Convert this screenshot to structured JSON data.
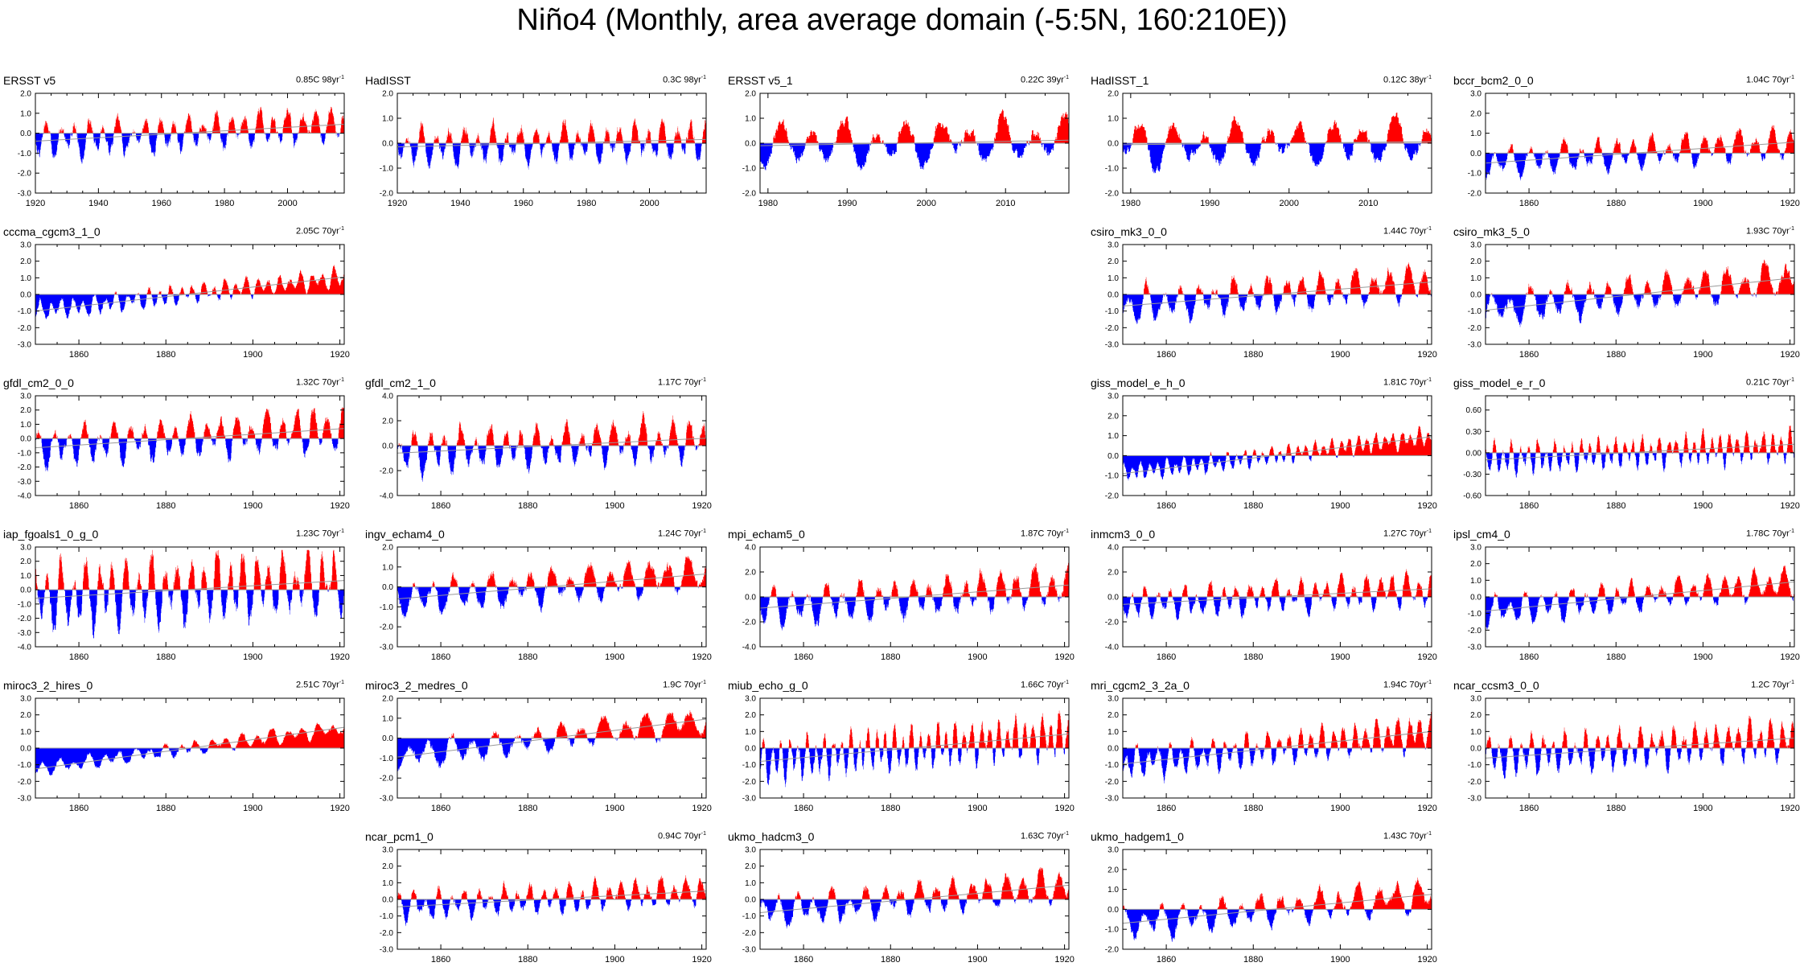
{
  "page_title": "Niño4 (Monthly, area average domain (-5:5N, 160:210E))",
  "colors": {
    "positive": "#ff0000",
    "negative": "#0000ff",
    "frame": "#000000",
    "zero_line": "#999999"
  },
  "chart_data": [
    {
      "name": "ERSST v5",
      "trend": "0.85C 98yr",
      "trend_sup": "-1",
      "type": "area",
      "x_start": 1920,
      "x_end": 2017,
      "ylim": [
        -3.0,
        2.0
      ],
      "yticks": [
        "2.0",
        "1.0",
        "0.0",
        "-1.0",
        "-2.0",
        "-3.0"
      ],
      "xticks": [
        1920,
        1940,
        1960,
        1980,
        2000
      ],
      "trend_line": [
        -0.4,
        0.45
      ],
      "amp": 0.9,
      "period": 4.5,
      "seed": 1,
      "row": 0,
      "col": 0
    },
    {
      "name": "HadISST",
      "trend": "0.3C 98yr",
      "trend_sup": "-1",
      "type": "area",
      "x_start": 1920,
      "x_end": 2017,
      "ylim": [
        -2.0,
        2.0
      ],
      "yticks": [
        "2.0",
        "1.0",
        "0.0",
        "-1.0",
        "-2.0"
      ],
      "xticks": [
        1920,
        1940,
        1960,
        1980,
        2000
      ],
      "trend_line": [
        -0.15,
        0.15
      ],
      "amp": 0.8,
      "period": 4.5,
      "seed": 2,
      "row": 0,
      "col": 1
    },
    {
      "name": "ERSST v5_1",
      "trend": "0.22C 39yr",
      "trend_sup": "-1",
      "type": "area",
      "x_start": 1979,
      "x_end": 2017,
      "ylim": [
        -2.0,
        2.0
      ],
      "yticks": [
        "2.0",
        "1.0",
        "0.0",
        "-1.0",
        "-2.0"
      ],
      "xticks": [
        1980,
        1990,
        2000,
        2010
      ],
      "trend_line": [
        -0.1,
        0.12
      ],
      "amp": 0.9,
      "period": 4.0,
      "seed": 3,
      "row": 0,
      "col": 2
    },
    {
      "name": "HadISST_1",
      "trend": "0.12C 38yr",
      "trend_sup": "-1",
      "type": "area",
      "x_start": 1979,
      "x_end": 2017,
      "ylim": [
        -2.0,
        2.0
      ],
      "yticks": [
        "2.0",
        "1.0",
        "0.0",
        "-1.0",
        "-2.0"
      ],
      "xticks": [
        1980,
        1990,
        2000,
        2010
      ],
      "trend_line": [
        -0.06,
        0.06
      ],
      "amp": 0.9,
      "period": 4.0,
      "seed": 4,
      "row": 0,
      "col": 3
    },
    {
      "name": "bccr_bcm2_0_0",
      "trend": "1.04C 70yr",
      "trend_sup": "-1",
      "type": "area",
      "x_start": 1850,
      "x_end": 1920,
      "ylim": [
        -2.0,
        3.0
      ],
      "yticks": [
        "3.0",
        "2.0",
        "1.0",
        "0.0",
        "-1.0",
        "-2.0"
      ],
      "xticks": [
        1860,
        1880,
        1900,
        1920
      ],
      "trend_line": [
        -0.5,
        0.55
      ],
      "amp": 0.8,
      "period": 4.0,
      "seed": 5,
      "row": 0,
      "col": 4
    },
    {
      "name": "cccma_cgcm3_1_0",
      "trend": "2.05C 70yr",
      "trend_sup": "-1",
      "type": "area",
      "x_start": 1850,
      "x_end": 1920,
      "ylim": [
        -3.0,
        3.0
      ],
      "yticks": [
        "3.0",
        "2.0",
        "1.0",
        "0.0",
        "-1.0",
        "-2.0",
        "-3.0"
      ],
      "xticks": [
        1860,
        1880,
        1900,
        1920
      ],
      "trend_line": [
        -1.0,
        1.05
      ],
      "amp": 0.6,
      "period": 2.5,
      "seed": 6,
      "row": 1,
      "col": 0
    },
    {
      "name": "csiro_mk3_0_0",
      "trend": "1.44C 70yr",
      "trend_sup": "-1",
      "type": "area",
      "x_start": 1850,
      "x_end": 1920,
      "ylim": [
        -3.0,
        3.0
      ],
      "yticks": [
        "3.0",
        "2.0",
        "1.0",
        "0.0",
        "-1.0",
        "-2.0",
        "-3.0"
      ],
      "xticks": [
        1860,
        1880,
        1900,
        1920
      ],
      "trend_line": [
        -0.7,
        0.75
      ],
      "amp": 1.1,
      "period": 4.0,
      "seed": 7,
      "row": 1,
      "col": 3
    },
    {
      "name": "csiro_mk3_5_0",
      "trend": "1.93C 70yr",
      "trend_sup": "-1",
      "type": "area",
      "x_start": 1850,
      "x_end": 1920,
      "ylim": [
        -3.0,
        3.0
      ],
      "yticks": [
        "3.0",
        "2.0",
        "1.0",
        "0.0",
        "-1.0",
        "-2.0",
        "-3.0"
      ],
      "xticks": [
        1860,
        1880,
        1900,
        1920
      ],
      "trend_line": [
        -0.95,
        1.0
      ],
      "amp": 1.1,
      "period": 4.5,
      "seed": 8,
      "row": 1,
      "col": 4
    },
    {
      "name": "gfdl_cm2_0_0",
      "trend": "1.32C 70yr",
      "trend_sup": "-1",
      "type": "area",
      "x_start": 1850,
      "x_end": 1920,
      "ylim": [
        -4.0,
        3.0
      ],
      "yticks": [
        "3.0",
        "2.0",
        "1.0",
        "0.0",
        "-1.0",
        "-2.0",
        "-3.0",
        "-4.0"
      ],
      "xticks": [
        1860,
        1880,
        1900,
        1920
      ],
      "trend_line": [
        -0.65,
        0.7
      ],
      "amp": 1.4,
      "period": 3.5,
      "seed": 9,
      "row": 2,
      "col": 0
    },
    {
      "name": "gfdl_cm2_1_0",
      "trend": "1.17C 70yr",
      "trend_sup": "-1",
      "type": "area",
      "x_start": 1850,
      "x_end": 1920,
      "ylim": [
        -4.0,
        4.0
      ],
      "yticks": [
        "4.0",
        "2.0",
        "0.0",
        "-2.0",
        "-4.0"
      ],
      "xticks": [
        1860,
        1880,
        1900,
        1920
      ],
      "trend_line": [
        -0.6,
        0.6
      ],
      "amp": 1.7,
      "period": 3.5,
      "seed": 10,
      "row": 2,
      "col": 1
    },
    {
      "name": "giss_model_e_h_0",
      "trend": "1.81C 70yr",
      "trend_sup": "-1",
      "type": "area",
      "x_start": 1850,
      "x_end": 1920,
      "ylim": [
        -2.0,
        3.0
      ],
      "yticks": [
        "3.0",
        "2.0",
        "1.0",
        "0.0",
        "-1.0",
        "-2.0"
      ],
      "xticks": [
        1860,
        1880,
        1900,
        1920
      ],
      "trend_line": [
        -0.9,
        0.95
      ],
      "amp": 0.45,
      "period": 2.0,
      "seed": 11,
      "row": 2,
      "col": 3
    },
    {
      "name": "giss_model_e_r_0",
      "trend": "0.21C 70yr",
      "trend_sup": "-1",
      "type": "area",
      "x_start": 1850,
      "x_end": 1920,
      "ylim": [
        -0.6,
        0.8
      ],
      "yticks": [
        "0.60",
        "0.30",
        "0.00",
        "-0.30",
        "-0.60"
      ],
      "ytick_vals": [
        0.6,
        0.3,
        0.0,
        -0.3,
        -0.6
      ],
      "xticks": [
        1860,
        1880,
        1900,
        1920
      ],
      "trend_line": [
        -0.1,
        0.12
      ],
      "amp": 0.22,
      "period": 2.0,
      "seed": 12,
      "row": 2,
      "col": 4
    },
    {
      "name": "iap_fgoals1_0_g_0",
      "trend": "1.23C 70yr",
      "trend_sup": "-1",
      "type": "area",
      "x_start": 1850,
      "x_end": 1920,
      "ylim": [
        -4.0,
        3.0
      ],
      "yticks": [
        "3.0",
        "2.0",
        "1.0",
        "0.0",
        "-1.0",
        "-2.0",
        "-3.0",
        "-4.0"
      ],
      "xticks": [
        1860,
        1880,
        1900,
        1920
      ],
      "trend_line": [
        -0.6,
        0.65
      ],
      "amp": 2.4,
      "period": 3.0,
      "seed": 13,
      "row": 3,
      "col": 0
    },
    {
      "name": "ingv_echam4_0",
      "trend": "1.24C 70yr",
      "trend_sup": "-1",
      "type": "area",
      "x_start": 1850,
      "x_end": 1920,
      "ylim": [
        -3.0,
        2.0
      ],
      "yticks": [
        "2.0",
        "1.0",
        "0.0",
        "-1.0",
        "-2.0",
        "-3.0"
      ],
      "xticks": [
        1860,
        1880,
        1900,
        1920
      ],
      "trend_line": [
        -0.6,
        0.65
      ],
      "amp": 0.9,
      "period": 4.5,
      "seed": 14,
      "row": 3,
      "col": 1
    },
    {
      "name": "mpi_echam5_0",
      "trend": "1.87C 70yr",
      "trend_sup": "-1",
      "type": "area",
      "x_start": 1850,
      "x_end": 1920,
      "ylim": [
        -4.0,
        4.0
      ],
      "yticks": [
        "4.0",
        "2.0",
        "0.0",
        "-2.0",
        "-4.0"
      ],
      "xticks": [
        1860,
        1880,
        1900,
        1920
      ],
      "trend_line": [
        -0.9,
        0.95
      ],
      "amp": 1.6,
      "period": 4.0,
      "seed": 15,
      "row": 3,
      "col": 2
    },
    {
      "name": "inmcm3_0_0",
      "trend": "1.27C 70yr",
      "trend_sup": "-1",
      "type": "area",
      "x_start": 1850,
      "x_end": 1920,
      "ylim": [
        -4.0,
        4.0
      ],
      "yticks": [
        "4.0",
        "2.0",
        "0.0",
        "-2.0",
        "-4.0"
      ],
      "xticks": [
        1860,
        1880,
        1900,
        1920
      ],
      "trend_line": [
        -0.6,
        0.65
      ],
      "amp": 1.3,
      "period": 3.0,
      "seed": 16,
      "row": 3,
      "col": 3
    },
    {
      "name": "ipsl_cm4_0",
      "trend": "1.78C 70yr",
      "trend_sup": "-1",
      "type": "area",
      "x_start": 1850,
      "x_end": 1920,
      "ylim": [
        -3.0,
        3.0
      ],
      "yticks": [
        "3.0",
        "2.0",
        "1.0",
        "0.0",
        "-1.0",
        "-2.0",
        "-3.0"
      ],
      "xticks": [
        1860,
        1880,
        1900,
        1920
      ],
      "trend_line": [
        -0.85,
        0.9
      ],
      "amp": 0.9,
      "period": 3.5,
      "seed": 17,
      "row": 3,
      "col": 4
    },
    {
      "name": "miroc3_2_hires_0",
      "trend": "2.51C 70yr",
      "trend_sup": "-1",
      "type": "area",
      "x_start": 1850,
      "x_end": 1920,
      "ylim": [
        -3.0,
        3.0
      ],
      "yticks": [
        "3.0",
        "2.0",
        "1.0",
        "0.0",
        "-1.0",
        "-2.0",
        "-3.0"
      ],
      "xticks": [
        1860,
        1880,
        1900,
        1920
      ],
      "trend_line": [
        -1.25,
        1.25
      ],
      "amp": 0.45,
      "period": 3.5,
      "seed": 18,
      "row": 4,
      "col": 0
    },
    {
      "name": "miroc3_2_medres_0",
      "trend": "1.9C 70yr",
      "trend_sup": "-1",
      "type": "area",
      "x_start": 1850,
      "x_end": 1920,
      "ylim": [
        -3.0,
        2.0
      ],
      "yticks": [
        "2.0",
        "1.0",
        "0.0",
        "-1.0",
        "-2.0",
        "-3.0"
      ],
      "xticks": [
        1860,
        1880,
        1900,
        1920
      ],
      "trend_line": [
        -0.95,
        0.95
      ],
      "amp": 0.7,
      "period": 5.0,
      "seed": 19,
      "row": 4,
      "col": 1
    },
    {
      "name": "miub_echo_g_0",
      "trend": "1.66C 70yr",
      "trend_sup": "-1",
      "type": "area",
      "x_start": 1850,
      "x_end": 1920,
      "ylim": [
        -3.0,
        3.0
      ],
      "yticks": [
        "3.0",
        "2.0",
        "1.0",
        "0.0",
        "-1.0",
        "-2.0",
        "-3.0"
      ],
      "xticks": [
        1860,
        1880,
        1900,
        1920
      ],
      "trend_line": [
        -0.8,
        0.85
      ],
      "amp": 1.3,
      "period": 2.0,
      "seed": 20,
      "row": 4,
      "col": 2
    },
    {
      "name": "mri_cgcm2_3_2a_0",
      "trend": "1.94C 70yr",
      "trend_sup": "-1",
      "type": "area",
      "x_start": 1850,
      "x_end": 1920,
      "ylim": [
        -3.0,
        3.0
      ],
      "yticks": [
        "3.0",
        "2.0",
        "1.0",
        "0.0",
        "-1.0",
        "-2.0",
        "-3.0"
      ],
      "xticks": [
        1860,
        1880,
        1900,
        1920
      ],
      "trend_line": [
        -0.95,
        1.0
      ],
      "amp": 1.0,
      "period": 2.5,
      "seed": 21,
      "row": 4,
      "col": 3
    },
    {
      "name": "ncar_ccsm3_0_0",
      "trend": "1.2C 70yr",
      "trend_sup": "-1",
      "type": "area",
      "x_start": 1850,
      "x_end": 1920,
      "ylim": [
        -3.0,
        3.0
      ],
      "yticks": [
        "3.0",
        "2.0",
        "1.0",
        "0.0",
        "-1.0",
        "-2.0",
        "-3.0"
      ],
      "xticks": [
        1860,
        1880,
        1900,
        1920
      ],
      "trend_line": [
        -0.6,
        0.6
      ],
      "amp": 1.2,
      "period": 2.5,
      "seed": 22,
      "row": 4,
      "col": 4
    },
    {
      "name": "ncar_pcm1_0",
      "trend": "0.94C 70yr",
      "trend_sup": "-1",
      "type": "area",
      "x_start": 1850,
      "x_end": 1920,
      "ylim": [
        -3.0,
        3.0
      ],
      "yticks": [
        "3.0",
        "2.0",
        "1.0",
        "0.0",
        "-1.0",
        "-2.0",
        "-3.0"
      ],
      "xticks": [
        1860,
        1880,
        1900,
        1920
      ],
      "trend_line": [
        -0.45,
        0.5
      ],
      "amp": 0.9,
      "period": 3.0,
      "seed": 23,
      "row": 5,
      "col": 1
    },
    {
      "name": "ukmo_hadcm3_0",
      "trend": "1.63C 70yr",
      "trend_sup": "-1",
      "type": "area",
      "x_start": 1850,
      "x_end": 1920,
      "ylim": [
        -3.0,
        3.0
      ],
      "yticks": [
        "3.0",
        "2.0",
        "1.0",
        "0.0",
        "-1.0",
        "-2.0",
        "-3.0"
      ],
      "xticks": [
        1860,
        1880,
        1900,
        1920
      ],
      "trend_line": [
        -0.8,
        0.85
      ],
      "amp": 1.0,
      "period": 4.0,
      "seed": 24,
      "row": 5,
      "col": 2
    },
    {
      "name": "ukmo_hadgem1_0",
      "trend": "1.43C 70yr",
      "trend_sup": "-1",
      "type": "area",
      "x_start": 1850,
      "x_end": 1920,
      "ylim": [
        -2.0,
        3.0
      ],
      "yticks": [
        "3.0",
        "2.0",
        "1.0",
        "0.0",
        "-1.0",
        "-2.0"
      ],
      "xticks": [
        1860,
        1880,
        1900,
        1920
      ],
      "trend_line": [
        -0.7,
        0.75
      ],
      "amp": 0.8,
      "period": 4.5,
      "seed": 25,
      "row": 5,
      "col": 3
    }
  ]
}
